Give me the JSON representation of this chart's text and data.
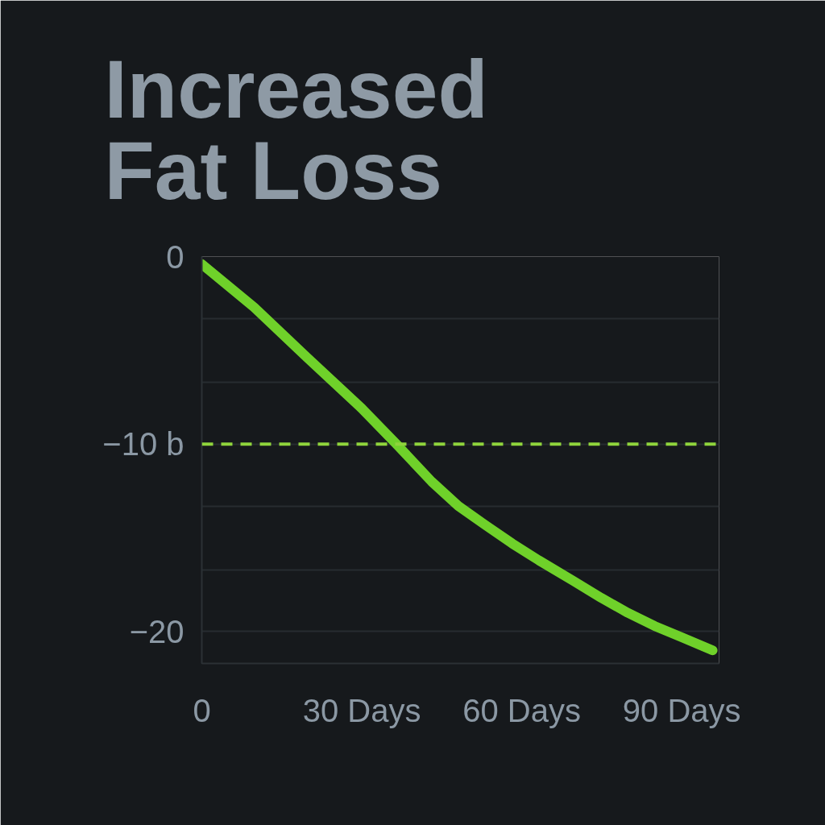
{
  "chart_data": {
    "type": "line",
    "title": "Increased Fat Loss",
    "x": [
      0,
      9.8,
      19.8,
      30,
      36.5,
      43.1,
      48.1,
      53.1,
      58.2,
      63.2,
      69.7,
      74.9,
      79.9,
      84.9,
      90,
      95.8
    ],
    "series": [
      {
        "color": "#6fd12a",
        "values": [
          -0.4,
          -2.7,
          -5.4,
          -8.1,
          -10,
          -12,
          -13.3,
          -14.3,
          -15.3,
          -16.2,
          -17.3,
          -18.2,
          -19,
          -19.7,
          -20.3,
          -21
        ]
      }
    ],
    "xlim": [
      0,
      97
    ],
    "xticks": [
      0,
      {
        "value": 30,
        "label": "30 Days"
      },
      {
        "value": 60,
        "label": "60 Days"
      },
      {
        "value": 90,
        "label": "90 Days"
      }
    ],
    "ylim": [
      -21.7,
      0
    ],
    "yticks": [
      0,
      {
        "value": -3.3,
        "label": null
      },
      {
        "value": -6.7,
        "label": null
      },
      {
        "value": -10,
        "label": "−10 b"
      },
      {
        "value": -13.3,
        "label": null
      },
      {
        "value": -16.7,
        "label": null
      },
      {
        "value": -20,
        "label": "−20"
      }
    ],
    "grid": "y",
    "ref_lines": [
      {
        "axis": "y",
        "value": -10,
        "color": "#8fd43c",
        "line_style": "dashed"
      }
    ]
  }
}
